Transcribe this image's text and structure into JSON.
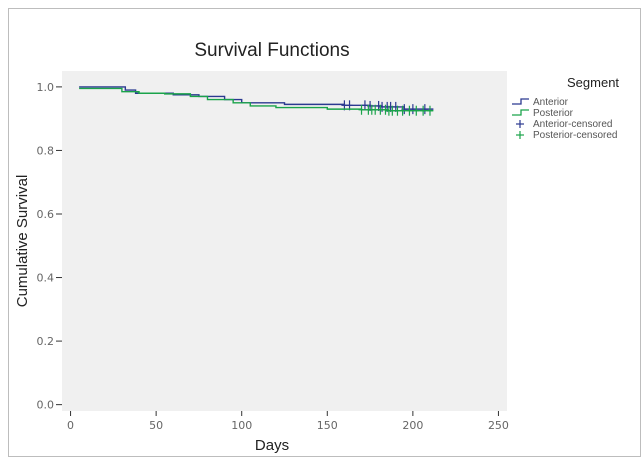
{
  "chart_data": {
    "type": "line",
    "title": "Survival Functions",
    "xlabel": "Days",
    "ylabel": "Cumulative Survival",
    "xlim": [
      -5,
      255
    ],
    "ylim": [
      -0.02,
      1.05
    ],
    "x_ticks": [
      0,
      50,
      100,
      150,
      200,
      250
    ],
    "y_ticks": [
      0.0,
      0.2,
      0.4,
      0.6,
      0.8,
      1.0
    ],
    "x_tick_labels": [
      "0",
      "50",
      "100",
      "150",
      "200",
      "250"
    ],
    "y_tick_labels": [
      "0.0",
      "0.2",
      "0.4",
      "0.6",
      "0.8",
      "1.0"
    ],
    "grid": false,
    "background": "#f0f0f0",
    "legend": {
      "title": "Segment",
      "placement": "right",
      "entries": [
        "Anterior",
        "Posterior",
        "Anterior-censored",
        "Posterior-censored"
      ]
    },
    "series": [
      {
        "name": "Anterior",
        "color": "#2b3990",
        "step": true,
        "x": [
          5,
          28,
          32,
          38,
          60,
          75,
          90,
          100,
          125,
          160,
          175,
          182,
          195,
          212
        ],
        "y": [
          1.0,
          1.0,
          0.99,
          0.98,
          0.975,
          0.97,
          0.96,
          0.95,
          0.945,
          0.942,
          0.94,
          0.937,
          0.93,
          0.93
        ],
        "censored_x": [
          160,
          163,
          172,
          175,
          180,
          182,
          185,
          187,
          190,
          195,
          200,
          207
        ]
      },
      {
        "name": "Posterior",
        "color": "#1aa34a",
        "step": true,
        "x": [
          5,
          25,
          30,
          40,
          55,
          70,
          80,
          95,
          105,
          120,
          150,
          170,
          185,
          212
        ],
        "y": [
          0.995,
          0.995,
          0.985,
          0.98,
          0.978,
          0.97,
          0.96,
          0.95,
          0.94,
          0.935,
          0.93,
          0.928,
          0.925,
          0.925
        ],
        "censored_x": [
          170,
          174,
          176,
          178,
          181,
          184,
          186,
          188,
          191,
          194,
          198,
          202,
          206,
          210
        ]
      }
    ]
  }
}
